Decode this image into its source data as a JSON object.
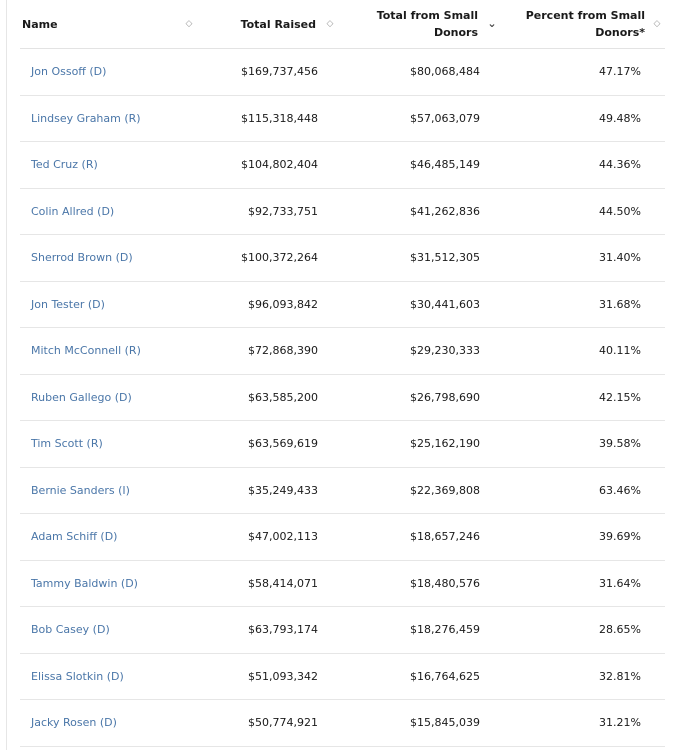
{
  "table": {
    "headers": {
      "name": "Name",
      "total_raised": "Total Raised",
      "small_donors_line1": "Total from Small",
      "small_donors_line2": "Donors",
      "percent_line1": "Percent from Small",
      "percent_line2": "Donors*"
    },
    "rows": [
      {
        "name": "Jon Ossoff (D)",
        "total_raised": "$169,737,456",
        "small_donors": "$80,068,484",
        "percent": "47.17%"
      },
      {
        "name": "Lindsey Graham (R)",
        "total_raised": "$115,318,448",
        "small_donors": "$57,063,079",
        "percent": "49.48%"
      },
      {
        "name": "Ted Cruz (R)",
        "total_raised": "$104,802,404",
        "small_donors": "$46,485,149",
        "percent": "44.36%"
      },
      {
        "name": "Colin Allred (D)",
        "total_raised": "$92,733,751",
        "small_donors": "$41,262,836",
        "percent": "44.50%"
      },
      {
        "name": "Sherrod Brown (D)",
        "total_raised": "$100,372,264",
        "small_donors": "$31,512,305",
        "percent": "31.40%"
      },
      {
        "name": "Jon Tester (D)",
        "total_raised": "$96,093,842",
        "small_donors": "$30,441,603",
        "percent": "31.68%"
      },
      {
        "name": "Mitch McConnell (R)",
        "total_raised": "$72,868,390",
        "small_donors": "$29,230,333",
        "percent": "40.11%"
      },
      {
        "name": "Ruben Gallego (D)",
        "total_raised": "$63,585,200",
        "small_donors": "$26,798,690",
        "percent": "42.15%"
      },
      {
        "name": "Tim Scott (R)",
        "total_raised": "$63,569,619",
        "small_donors": "$25,162,190",
        "percent": "39.58%"
      },
      {
        "name": "Bernie Sanders (I)",
        "total_raised": "$35,249,433",
        "small_donors": "$22,369,808",
        "percent": "63.46%"
      },
      {
        "name": "Adam Schiff (D)",
        "total_raised": "$47,002,113",
        "small_donors": "$18,657,246",
        "percent": "39.69%"
      },
      {
        "name": "Tammy Baldwin (D)",
        "total_raised": "$58,414,071",
        "small_donors": "$18,480,576",
        "percent": "31.64%"
      },
      {
        "name": "Bob Casey (D)",
        "total_raised": "$63,793,174",
        "small_donors": "$18,276,459",
        "percent": "28.65%"
      },
      {
        "name": "Elissa Slotkin (D)",
        "total_raised": "$51,093,342",
        "small_donors": "$16,764,625",
        "percent": "32.81%"
      },
      {
        "name": "Jacky Rosen (D)",
        "total_raised": "$50,774,921",
        "small_donors": "$15,845,039",
        "percent": "31.21%"
      }
    ]
  },
  "icons": {
    "name_sort": "sort-both-icon",
    "raised_sort": "sort-both-icon",
    "small_sort": "sort-descending-icon",
    "pct_sort": "sort-both-icon"
  },
  "colors": {
    "link": "#4a76a8",
    "divider": "#e6e6e6"
  }
}
